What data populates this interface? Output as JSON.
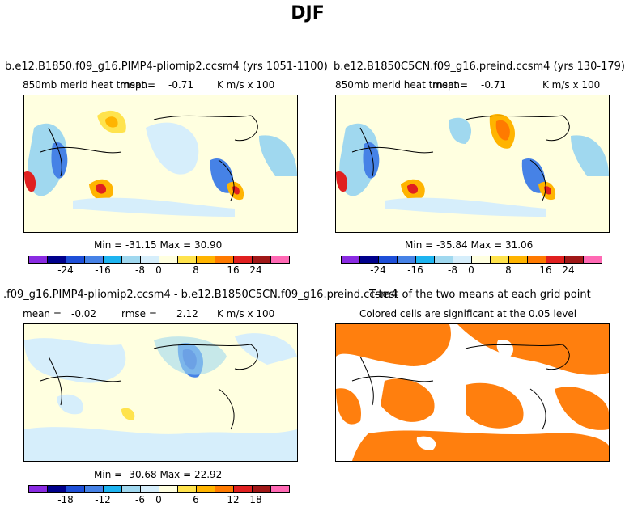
{
  "title": "DJF",
  "colors": {
    "palette": [
      "#8a2be2",
      "#00008b",
      "#1e4fd8",
      "#4682e6",
      "#1eb4f0",
      "#a0d8ef",
      "#d6eefb",
      "#ffffe0",
      "#ffe34d",
      "#ffb400",
      "#ff7a00",
      "#e02020",
      "#a01818",
      "#ff69b4"
    ],
    "significance": "#ff7f0e"
  },
  "panels": {
    "p1": {
      "title": "b.e12.B1850.f09_g16.PIMP4-pliomip2.ccsm4 (yrs 1051-1100)",
      "var": "850mb merid heat trnspt",
      "mean_label": "mean=",
      "mean": "-0.71",
      "units": "K m/s x 100",
      "minmax": "Min = -31.15 Max =  30.90",
      "ticks": [
        "-24",
        "-16",
        "-8",
        "0",
        "8",
        "16",
        "24"
      ]
    },
    "p2": {
      "title": "b.e12.B1850C5CN.f09_g16.preind.ccsm4 (yrs 130-179)",
      "var": "850mb merid heat trnspt",
      "mean_label": "mean=",
      "mean": "-0.71",
      "units": "K m/s x 100",
      "minmax": "Min = -35.84 Max =  31.06",
      "ticks": [
        "-24",
        "-16",
        "-8",
        "0",
        "8",
        "16",
        "24"
      ]
    },
    "p3": {
      "title": ".f09_g16.PIMP4-pliomip2.ccsm4 - b.e12.B1850C5CN.f09_g16.preind.ccsm4",
      "mean_label": "mean =",
      "mean": "-0.02",
      "rmse_label": "rmse =",
      "rmse": "2.12",
      "units": "K m/s x 100",
      "minmax": "Min = -30.68 Max =  22.92",
      "ticks": [
        "-18",
        "-12",
        "-6",
        "0",
        "6",
        "12",
        "18"
      ]
    },
    "p4": {
      "title": "T-test of the two means at each grid point",
      "subtitle": "Colored cells are significant at the 0.05 level"
    }
  }
}
